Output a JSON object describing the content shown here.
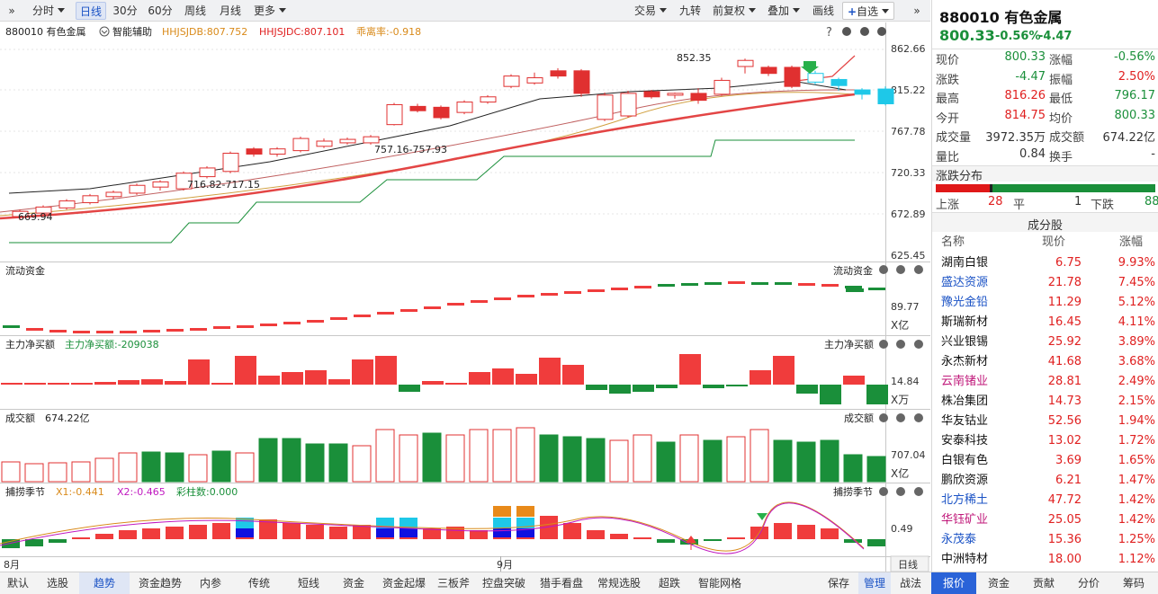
{
  "toolbar": {
    "expand": "»",
    "items": [
      "分时",
      "日线",
      "30分",
      "60分",
      "周线",
      "月线",
      "更多"
    ],
    "right": [
      "交易",
      "九转",
      "前复权",
      "叠加",
      "画线",
      "自选"
    ],
    "collapse": "»"
  },
  "main": {
    "code_name": "880010 有色金属",
    "assist": "智能辅助",
    "ind1": "HHJSJDB:807.752",
    "ind2": "HHJSJDC:807.101",
    "ind3": "乖离率:-0.918",
    "y_labels": [
      "862.66",
      "815.22",
      "767.78",
      "720.33",
      "672.89",
      "625.45"
    ],
    "annotations": [
      "852.35",
      "757.16-757.93",
      "716.82-717.15",
      "669.94"
    ]
  },
  "panels": {
    "liquidity": {
      "title": "流动资金",
      "right_title": "流动资金",
      "value": "89.77",
      "unit": "X亿"
    },
    "mainforce": {
      "title": "主力净买额",
      "value_label": "主力净买额:-209038",
      "right_title": "主力净买额",
      "value": "14.84",
      "unit": "X万"
    },
    "turnover": {
      "title": "成交额",
      "value_label": "674.22亿",
      "right_title": "成交额",
      "value": "707.04",
      "unit": "X亿"
    },
    "season": {
      "title": "捕捞季节",
      "x1": "X1:-0.441",
      "x2": "X2:-0.465",
      "bar": "彩柱数:0.000",
      "right_title": "捕捞季节",
      "value": "0.49"
    }
  },
  "axis": {
    "months": [
      "8月",
      "9月"
    ],
    "period_btn": "日线"
  },
  "quote": {
    "title": "880010 有色金属",
    "price": "800.33",
    "pct": "-0.56%",
    "chg": "-4.47",
    "rows": [
      [
        "现价",
        "800.33",
        "涨幅",
        "-0.56%"
      ],
      [
        "涨跌",
        "-4.47",
        "振幅",
        "2.50%"
      ],
      [
        "最高",
        "816.26",
        "最低",
        "796.17"
      ],
      [
        "今开",
        "814.75",
        "均价",
        "800.33"
      ],
      [
        "成交量",
        "3972.35万",
        "成交额",
        "674.22亿"
      ],
      [
        "量比",
        "0.84",
        "换手",
        "-"
      ]
    ],
    "dist_title": "涨跌分布",
    "up_label": "上涨",
    "up": "28",
    "flat_label": "平",
    "flat": "1",
    "down_label": "下跌",
    "down": "88",
    "comp_title": "成分股",
    "cols": [
      "名称",
      "现价",
      "涨幅"
    ],
    "stocks": [
      [
        "湖南白银",
        "6.75",
        "9.93%"
      ],
      [
        "盛达资源",
        "21.78",
        "7.45%"
      ],
      [
        "豫光金铅",
        "11.29",
        "5.12%"
      ],
      [
        "斯瑞新材",
        "16.45",
        "4.11%"
      ],
      [
        "兴业银锡",
        "25.92",
        "3.89%"
      ],
      [
        "永杰新材",
        "41.68",
        "3.68%"
      ],
      [
        "云南锗业",
        "28.81",
        "2.49%"
      ],
      [
        "株冶集团",
        "14.73",
        "2.15%"
      ],
      [
        "华友钴业",
        "52.56",
        "1.94%"
      ],
      [
        "安泰科技",
        "13.02",
        "1.72%"
      ],
      [
        "白银有色",
        "3.69",
        "1.65%"
      ],
      [
        "鹏欣资源",
        "6.21",
        "1.47%"
      ],
      [
        "北方稀土",
        "47.72",
        "1.42%"
      ],
      [
        "华钰矿业",
        "25.05",
        "1.42%"
      ],
      [
        "永茂泰",
        "15.36",
        "1.25%"
      ],
      [
        "中洲特材",
        "18.00",
        "1.12%"
      ]
    ],
    "name_colors": [
      "#111111",
      "#1a52c5",
      "#1a52c5",
      "#111111",
      "#111111",
      "#111111",
      "#c0187a",
      "#111111",
      "#111111",
      "#111111",
      "#111111",
      "#111111",
      "#1a52c5",
      "#c0187a",
      "#1a52c5",
      "#111111"
    ],
    "tabs": [
      "报价",
      "资金",
      "贡献",
      "分价",
      "筹码"
    ]
  },
  "bottom": {
    "items": [
      "默认",
      "选股",
      "趋势",
      "资金趋势",
      "内参",
      "传统",
      "短线",
      "资金",
      "资金起爆",
      "三板斧",
      "控盘突破",
      "猎手看盘",
      "常规选股",
      "超跌",
      "智能网格"
    ],
    "right": [
      "保存",
      "管理",
      "战法"
    ]
  },
  "colors": {
    "up": "#f03c3c",
    "down": "#1a8f3a",
    "ma": "#e34545",
    "accent": "#1a52c5"
  },
  "chart_data": {
    "type": "candlestick",
    "y_range": [
      625.45,
      862.66
    ],
    "candles": [
      [
        670,
        676,
        666,
        678
      ],
      [
        674,
        681,
        672,
        683
      ],
      [
        680,
        688,
        678,
        690
      ],
      [
        686,
        694,
        684,
        696
      ],
      [
        693,
        698,
        690,
        700
      ],
      [
        697,
        706,
        695,
        708
      ],
      [
        704,
        710,
        700,
        712
      ],
      [
        702,
        720,
        700,
        722
      ],
      [
        716,
        726,
        714,
        728
      ],
      [
        722,
        743,
        720,
        745
      ],
      [
        748,
        742,
        739,
        750
      ],
      [
        742,
        748,
        739,
        750
      ],
      [
        746,
        760,
        744,
        762
      ],
      [
        751,
        757,
        749,
        760
      ],
      [
        755,
        759,
        753,
        761
      ],
      [
        755,
        762,
        753,
        764
      ],
      [
        776,
        799,
        775,
        801
      ],
      [
        797,
        792,
        790,
        800
      ],
      [
        796,
        784,
        782,
        798
      ],
      [
        790,
        802,
        788,
        804
      ],
      [
        802,
        808,
        800,
        810
      ],
      [
        820,
        832,
        818,
        834
      ],
      [
        824,
        830,
        822,
        836
      ],
      [
        838,
        832,
        829,
        841
      ],
      [
        838,
        812,
        808,
        840
      ],
      [
        782,
        810,
        780,
        813
      ],
      [
        786,
        812,
        784,
        815
      ],
      [
        814,
        808,
        806,
        816
      ],
      [
        810,
        812,
        806,
        813
      ],
      [
        812,
        804,
        800,
        818
      ],
      [
        811,
        827,
        809,
        830
      ],
      [
        843,
        850,
        835,
        852
      ],
      [
        842,
        835,
        832,
        844
      ],
      [
        842,
        820,
        818,
        844
      ],
      [
        825,
        835,
        822,
        838
      ],
      [
        828,
        821,
        815,
        830
      ],
      [
        816,
        811,
        805,
        818
      ],
      [
        817,
        800,
        798,
        820
      ]
    ]
  }
}
